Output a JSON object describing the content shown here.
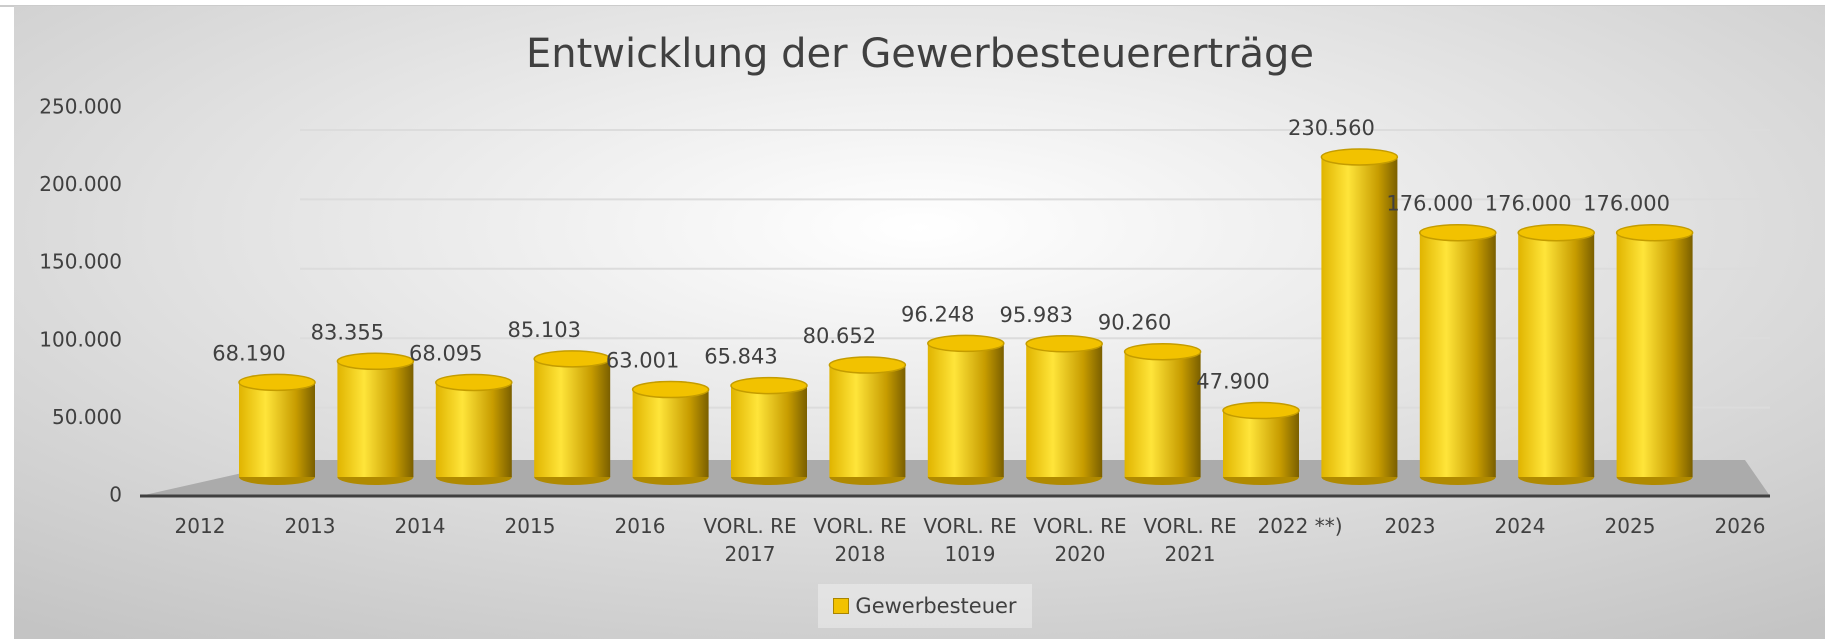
{
  "chart_data": {
    "type": "bar",
    "title": "Entwicklung der Gewerbesteuererträge",
    "categories": [
      "2012",
      "2013",
      "2014",
      "2015",
      "2016",
      "VORL. RE 2017",
      "VORL. RE 2018",
      "VORL. RE 1019",
      "VORL. RE 2020",
      "VORL. RE 2021",
      "2022 **)",
      "2023",
      "2024",
      "2025",
      "2026"
    ],
    "series": [
      {
        "name": "Gewerbesteuer",
        "color": "#f2c200",
        "values": [
          68190,
          83355,
          68095,
          85103,
          63001,
          65843,
          80652,
          96248,
          95983,
          90260,
          47900,
          230560,
          176000,
          176000,
          176000
        ],
        "value_labels": [
          "68.190",
          "83.355",
          "68.095",
          "85.103",
          "63.001",
          "65.843",
          "80.652",
          "96.248",
          "95.983",
          "90.260",
          "47.900",
          "230.560",
          "176.000",
          "176.000",
          "176.000"
        ]
      }
    ],
    "ylim": [
      0,
      250000
    ],
    "yticks": [
      0,
      {
        "value": 50000,
        "label": "50.000"
      },
      {
        "value": 100000,
        "label": "100.000"
      },
      {
        "value": 150000,
        "label": "150.000"
      },
      {
        "value": 200000,
        "label": "200.000"
      },
      {
        "value": 250000,
        "label": "250.000"
      }
    ],
    "grid": true,
    "legend": "bottom"
  }
}
